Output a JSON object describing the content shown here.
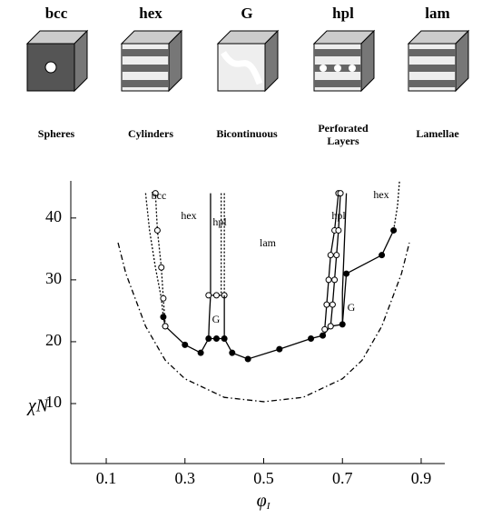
{
  "header": {
    "phases": [
      "bcc",
      "hex",
      "G",
      "hpl",
      "lam"
    ],
    "names": [
      "Spheres",
      "Cylinders",
      "Bicontinuous",
      "Perforated Layers",
      "Lamellae"
    ]
  },
  "chart_data": {
    "type": "line",
    "xlabel": "φ",
    "xlabel_subscript": "I",
    "ylabel": "χN",
    "xlim": [
      0.01,
      0.96
    ],
    "ylim": [
      0.3,
      46
    ],
    "xticks": [
      0.1,
      0.3,
      0.5,
      0.7,
      0.9
    ],
    "yticks": [
      10,
      20,
      30,
      40
    ],
    "annotations": [
      "bcc",
      "hex",
      "hpl",
      "lam",
      "G",
      "G",
      "hpl",
      "hex"
    ],
    "series": [
      {
        "color": "#000",
        "style": "dashdot",
        "x": [
          0.13,
          0.15,
          0.2,
          0.25,
          0.3,
          0.4,
          0.5,
          0.6,
          0.7,
          0.75,
          0.8,
          0.85,
          0.87
        ],
        "values": [
          36,
          31,
          22.5,
          17,
          14,
          11,
          10.3,
          11,
          14,
          17,
          22.5,
          31,
          36
        ]
      },
      {
        "color": "#000",
        "style": "solid",
        "marker": "filled",
        "x": [
          0.245,
          0.25,
          0.3,
          0.34,
          0.36,
          0.38,
          0.4,
          0.42,
          0.46,
          0.54,
          0.62,
          0.65,
          0.67,
          0.7,
          0.71,
          0.8,
          0.83
        ],
        "values": [
          24,
          22.5,
          19.5,
          18.2,
          20.5,
          20.5,
          20.5,
          18.2,
          17.2,
          18.8,
          20.5,
          21,
          22.5,
          22.8,
          31,
          34,
          38
        ]
      },
      {
        "color": "#000",
        "style": "dotted",
        "x": [
          0.2,
          0.21,
          0.225,
          0.24,
          0.245
        ],
        "values": [
          44,
          38,
          32,
          27,
          24
        ]
      },
      {
        "color": "#000",
        "style": "dotted",
        "marker": "open",
        "x": [
          0.225,
          0.23,
          0.24,
          0.245,
          0.25
        ],
        "values": [
          44,
          38,
          32,
          27,
          22.5
        ]
      },
      {
        "color": "#000",
        "style": "solid",
        "x": [
          0.365,
          0.365,
          0.362,
          0.36
        ],
        "values": [
          44,
          27.5,
          24,
          20.5
        ]
      },
      {
        "color": "#000",
        "style": "dotted",
        "x": [
          0.392,
          0.392
        ],
        "values": [
          44,
          27.5
        ]
      },
      {
        "color": "#000",
        "style": "dotted",
        "x": [
          0.4,
          0.4
        ],
        "values": [
          44,
          27.5
        ]
      },
      {
        "color": "#000",
        "style": "solid",
        "marker": "open",
        "x": [
          0.36,
          0.38,
          0.4
        ],
        "values": [
          27.5,
          27.5,
          27.5
        ]
      },
      {
        "color": "#000",
        "style": "solid",
        "x": [
          0.4,
          0.4
        ],
        "values": [
          27.5,
          20.5
        ]
      },
      {
        "color": "#000",
        "style": "solid",
        "marker": "open",
        "x": [
          0.655,
          0.66,
          0.665,
          0.67,
          0.68,
          0.69
        ],
        "values": [
          22,
          26,
          30,
          34,
          38,
          44
        ]
      },
      {
        "color": "#000",
        "style": "solid",
        "marker": "open",
        "x": [
          0.67,
          0.675,
          0.68,
          0.685,
          0.69,
          0.695
        ],
        "values": [
          22.5,
          26,
          30,
          34,
          38,
          44
        ]
      },
      {
        "color": "#000",
        "style": "solid",
        "x": [
          0.7,
          0.7,
          0.705,
          0.71
        ],
        "values": [
          22.8,
          28,
          36,
          44
        ]
      },
      {
        "color": "#000",
        "style": "dotted",
        "x": [
          0.83,
          0.84,
          0.845
        ],
        "values": [
          38,
          42,
          46
        ]
      }
    ]
  }
}
